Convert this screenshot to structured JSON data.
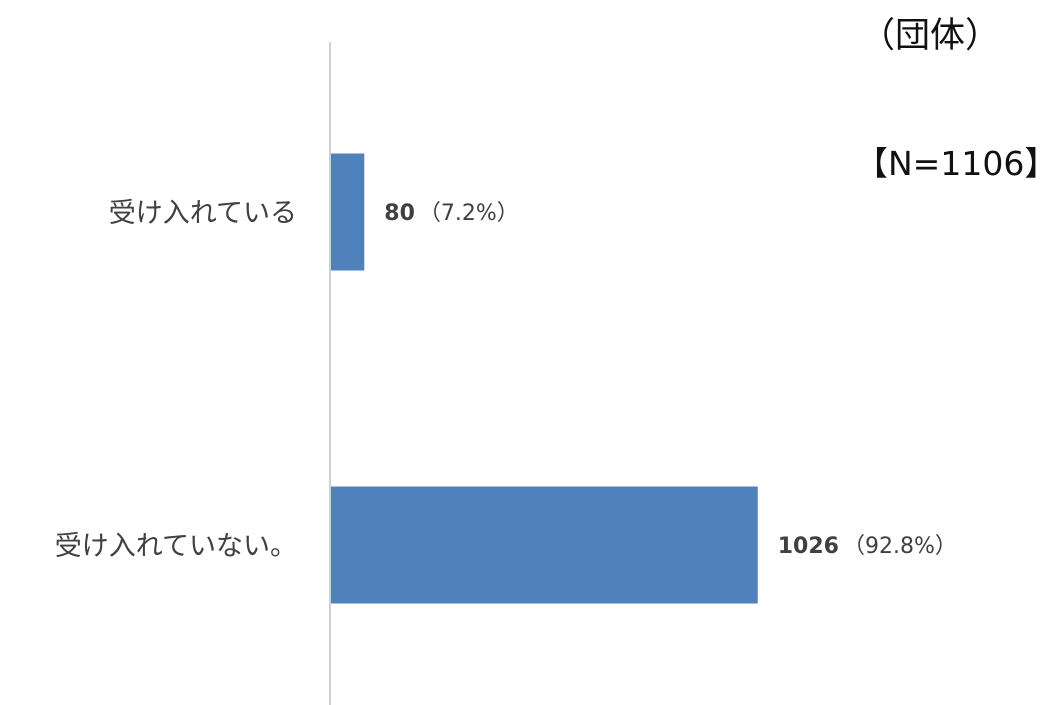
{
  "chart_data": {
    "type": "bar",
    "orientation": "horizontal",
    "unit_label": "（団体）",
    "n_label": "【N=1106】",
    "categories": [
      "受け入れている",
      "受け入れていない。"
    ],
    "values": [
      80,
      1026
    ],
    "value_labels": [
      "80",
      "1026"
    ],
    "percent_labels": [
      "（7.2%）",
      "（92.8%）"
    ],
    "bar_color": "#4f81bd",
    "axis_color": "#d0d0d0",
    "xlim": [
      0,
      1106
    ],
    "grid": false,
    "legend": "none"
  }
}
